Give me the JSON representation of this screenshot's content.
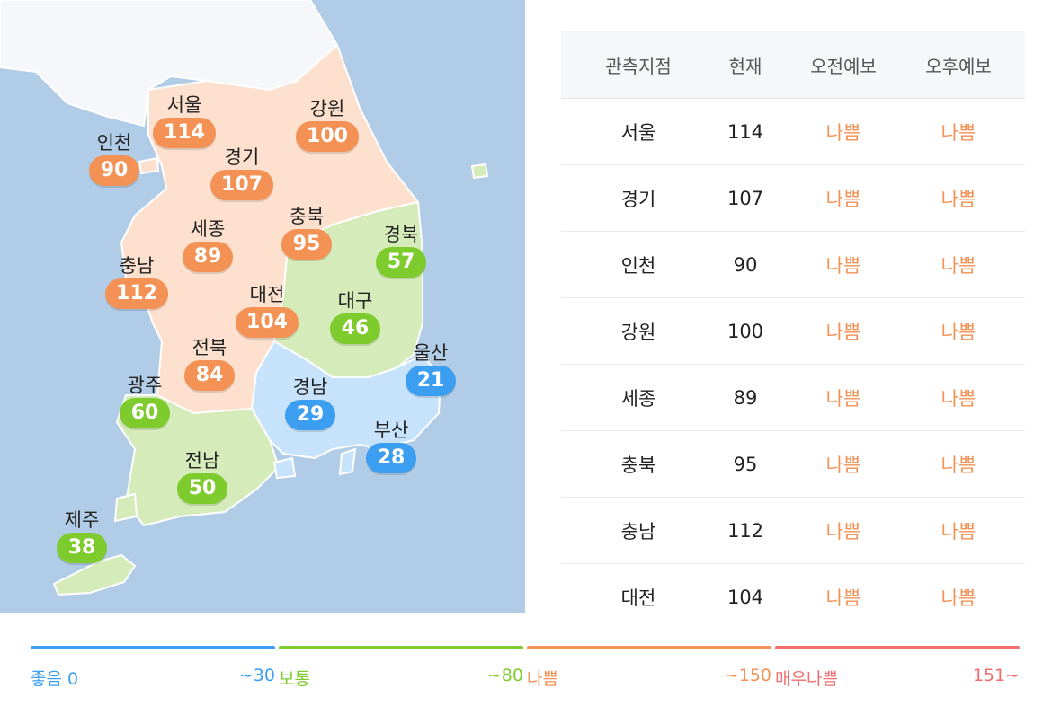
{
  "regions": [
    {
      "name": "서울",
      "value": "114",
      "level": "bad"
    },
    {
      "name": "인천",
      "value": "90",
      "level": "bad"
    },
    {
      "name": "경기",
      "value": "107",
      "level": "bad"
    },
    {
      "name": "강원",
      "value": "100",
      "level": "bad"
    },
    {
      "name": "세종",
      "value": "89",
      "level": "bad"
    },
    {
      "name": "충북",
      "value": "95",
      "level": "bad"
    },
    {
      "name": "경북",
      "value": "57",
      "level": "normal"
    },
    {
      "name": "충남",
      "value": "112",
      "level": "bad"
    },
    {
      "name": "대전",
      "value": "104",
      "level": "bad"
    },
    {
      "name": "대구",
      "value": "46",
      "level": "normal"
    },
    {
      "name": "전북",
      "value": "84",
      "level": "bad"
    },
    {
      "name": "울산",
      "value": "21",
      "level": "good"
    },
    {
      "name": "광주",
      "value": "60",
      "level": "normal"
    },
    {
      "name": "경남",
      "value": "29",
      "level": "good"
    },
    {
      "name": "부산",
      "value": "28",
      "level": "good"
    },
    {
      "name": "전남",
      "value": "50",
      "level": "normal"
    },
    {
      "name": "제주",
      "value": "38",
      "level": "normal"
    }
  ],
  "table": {
    "headers": [
      "관측지점",
      "현재",
      "오전예보",
      "오후예보"
    ],
    "rows": [
      {
        "station": "서울",
        "current": "114",
        "am": "나쁨",
        "pm": "나쁨"
      },
      {
        "station": "경기",
        "current": "107",
        "am": "나쁨",
        "pm": "나쁨"
      },
      {
        "station": "인천",
        "current": "90",
        "am": "나쁨",
        "pm": "나쁨"
      },
      {
        "station": "강원",
        "current": "100",
        "am": "나쁨",
        "pm": "나쁨"
      },
      {
        "station": "세종",
        "current": "89",
        "am": "나쁨",
        "pm": "나쁨"
      },
      {
        "station": "충북",
        "current": "95",
        "am": "나쁨",
        "pm": "나쁨"
      },
      {
        "station": "충남",
        "current": "112",
        "am": "나쁨",
        "pm": "나쁨"
      },
      {
        "station": "대전",
        "current": "104",
        "am": "나쁨",
        "pm": "나쁨"
      }
    ]
  },
  "legend": [
    {
      "label": "좋음 0",
      "max": "~30",
      "color": "#3b9ef0"
    },
    {
      "label": "보통",
      "max": "~80",
      "color": "#7ecb2d"
    },
    {
      "label": "나쁨",
      "max": "~150",
      "color": "#f39254"
    },
    {
      "label": "매우나쁨",
      "max": "151~",
      "color": "#f06e6e"
    }
  ]
}
